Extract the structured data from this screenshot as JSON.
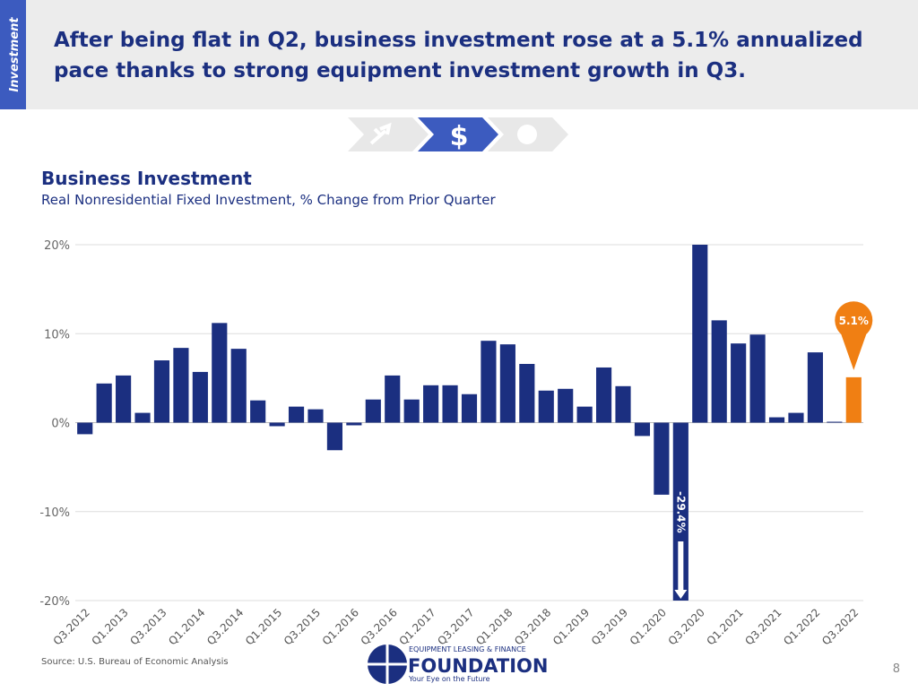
{
  "header": {
    "tab": "Investment",
    "title": "After being flat in Q2, business investment rose at a 5.1% annualized pace thanks to strong equipment investment growth in Q3."
  },
  "chart_data": {
    "type": "bar",
    "title": "Business Investment",
    "subtitle": "Real Nonresidential Fixed Investment, % Change from Prior Quarter",
    "categories": [
      "Q3.2012",
      null,
      "Q1.2013",
      null,
      "Q3.2013",
      null,
      "Q1.2014",
      null,
      "Q3.2014",
      null,
      "Q1.2015",
      null,
      "Q3.2015",
      null,
      "Q1.2016",
      null,
      "Q3.2016",
      null,
      "Q1.2017",
      null,
      "Q3.2017",
      null,
      "Q1.2018",
      null,
      "Q3.2018",
      null,
      "Q1.2019",
      null,
      "Q3.2019",
      null,
      "Q1.2020",
      null,
      "Q3.2020",
      null,
      "Q1.2021",
      null,
      "Q3.2021",
      null,
      "Q1.2022",
      null,
      "Q3.2022"
    ],
    "values": [
      -1.3,
      4.4,
      5.3,
      1.1,
      7.0,
      8.4,
      5.7,
      11.2,
      8.3,
      2.5,
      -0.4,
      1.8,
      1.5,
      -3.1,
      -0.3,
      2.6,
      5.3,
      2.6,
      4.2,
      4.2,
      3.2,
      9.2,
      8.8,
      6.6,
      3.6,
      3.8,
      1.8,
      6.2,
      4.1,
      -1.5,
      -8.1,
      -29.4,
      20,
      11.5,
      8.9,
      9.9,
      0.6,
      1.1,
      7.9,
      0.1,
      5.1
    ],
    "value_labels": [
      null,
      null,
      null,
      null,
      null,
      null,
      null,
      null,
      null,
      null,
      null,
      null,
      null,
      null,
      null,
      null,
      null,
      null,
      null,
      null,
      null,
      null,
      null,
      null,
      null,
      null,
      null,
      null,
      null,
      null,
      null,
      "-29.4%",
      null,
      null,
      null,
      null,
      null,
      null,
      null,
      null,
      "5.1%"
    ],
    "colors": [
      "#1b2f80",
      "#1b2f80",
      "#1b2f80",
      "#1b2f80",
      "#1b2f80",
      "#1b2f80",
      "#1b2f80",
      "#1b2f80",
      "#1b2f80",
      "#1b2f80",
      "#1b2f80",
      "#1b2f80",
      "#1b2f80",
      "#1b2f80",
      "#1b2f80",
      "#1b2f80",
      "#1b2f80",
      "#1b2f80",
      "#1b2f80",
      "#1b2f80",
      "#1b2f80",
      "#1b2f80",
      "#1b2f80",
      "#1b2f80",
      "#1b2f80",
      "#1b2f80",
      "#1b2f80",
      "#1b2f80",
      "#1b2f80",
      "#1b2f80",
      "#1b2f80",
      "#1b2f80",
      "#1b2f80",
      "#1b2f80",
      "#1b2f80",
      "#1b2f80",
      "#1b2f80",
      "#1b2f80",
      "#1b2f80",
      "#1b2f80",
      "#f07f13"
    ],
    "ylim": [
      -20,
      20
    ],
    "yticks": [
      {
        "value": -20,
        "label": "-20%"
      },
      {
        "value": -10,
        "label": "-10%"
      },
      {
        "value": 0,
        "label": "0%"
      },
      {
        "value": 10,
        "label": "10%"
      },
      {
        "value": 20,
        "label": "20%"
      }
    ],
    "grid": true,
    "source": "Source:  U.S. Bureau of Economic Analysis"
  },
  "footer": {
    "logo_top": "EQUIPMENT LEASING & FINANCE",
    "logo_main": "FOUNDATION",
    "logo_tagline": "Your Eye on the Future",
    "page": "8"
  }
}
